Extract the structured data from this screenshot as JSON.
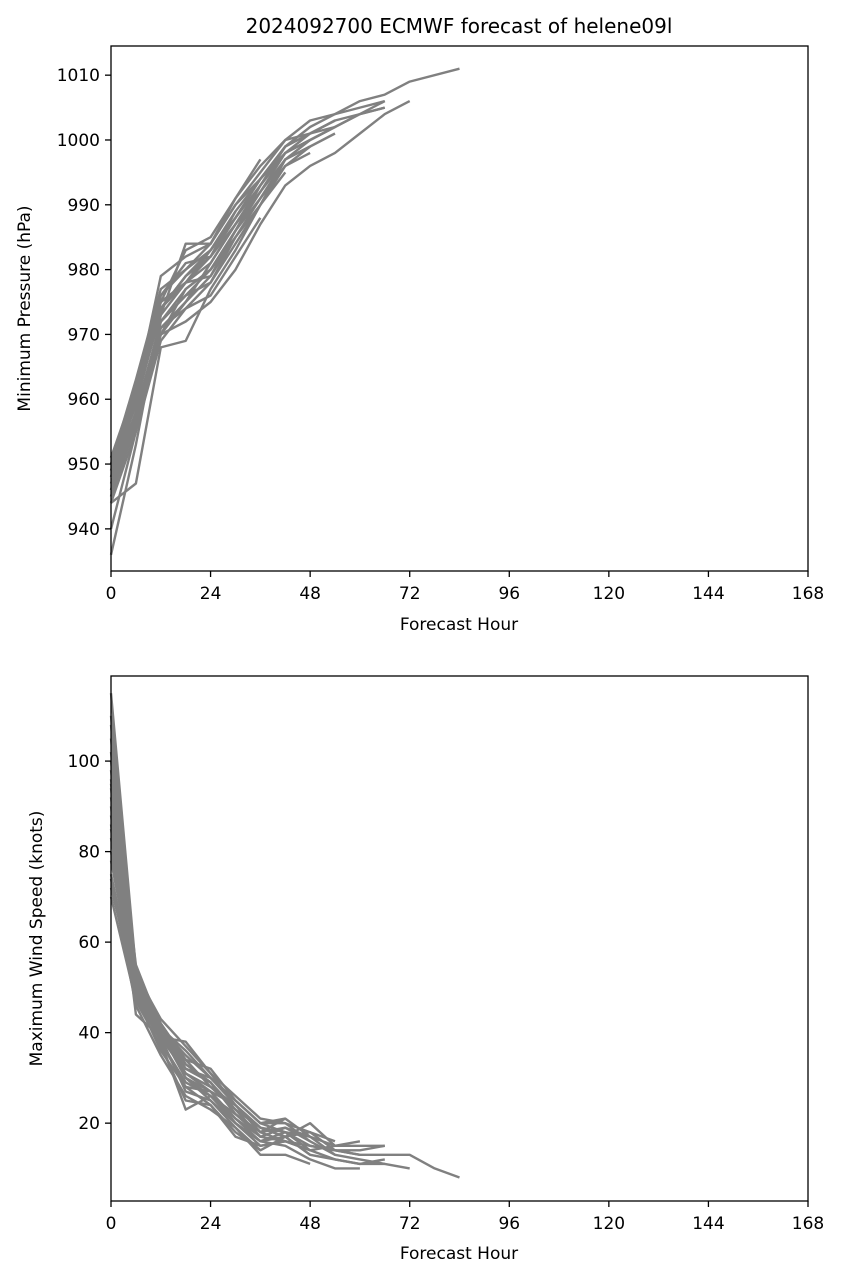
{
  "chart_data": [
    {
      "type": "line",
      "title": "2024092700 ECMWF forecast of helene09l",
      "xlabel": "Forecast Hour",
      "ylabel": "Minimum Pressure (hPa)",
      "xlim": [
        0,
        168
      ],
      "ylim": [
        933.5,
        1014.5
      ],
      "xticks": [
        0,
        24,
        48,
        72,
        96,
        120,
        144,
        168
      ],
      "yticks": [
        940,
        950,
        960,
        970,
        980,
        990,
        1000,
        1010
      ],
      "grid": false,
      "line_color": "#808080",
      "series": [
        {
          "x": [
            0,
            6,
            12,
            18,
            24,
            30,
            36,
            42,
            48,
            54,
            60,
            66,
            72,
            84
          ],
          "y": [
            948,
            962,
            975,
            978,
            982,
            989,
            994,
            999,
            1002,
            1004,
            1006,
            1007,
            1009,
            1011
          ]
        },
        {
          "x": [
            0,
            6,
            12,
            18,
            24,
            30,
            36,
            42,
            48,
            54,
            60,
            66,
            72
          ],
          "y": [
            945,
            958,
            970,
            972,
            975,
            980,
            987,
            993,
            996,
            998,
            1001,
            1004,
            1006
          ]
        },
        {
          "x": [
            0,
            6,
            12,
            18,
            24,
            30,
            36,
            42,
            48,
            54,
            60,
            66
          ],
          "y": [
            950,
            963,
            977,
            980,
            984,
            991,
            996,
            1000,
            1003,
            1004,
            1005,
            1006
          ]
        },
        {
          "x": [
            0,
            6,
            12,
            18,
            24,
            30,
            36,
            42,
            48,
            54,
            60,
            66
          ],
          "y": [
            946,
            960,
            974,
            978,
            983,
            988,
            994,
            998,
            1000,
            1002,
            1004,
            1006
          ]
        },
        {
          "x": [
            0,
            6,
            12,
            18,
            24,
            30,
            36,
            42,
            48,
            54,
            60,
            66
          ],
          "y": [
            944,
            947,
            968,
            969,
            977,
            983,
            990,
            997,
            1000,
            1002,
            1004,
            1005
          ]
        },
        {
          "x": [
            0,
            6,
            12,
            18,
            24,
            30,
            36,
            42,
            48,
            54,
            60,
            66
          ],
          "y": [
            951,
            961,
            979,
            982,
            984,
            990,
            995,
            1000,
            1001,
            1003,
            1004,
            1005
          ]
        },
        {
          "x": [
            0,
            6,
            12,
            18,
            24,
            30,
            36,
            42,
            48,
            54
          ],
          "y": [
            940,
            955,
            972,
            976,
            980,
            986,
            993,
            998,
            1001,
            1002
          ]
        },
        {
          "x": [
            0,
            6,
            12,
            18,
            24,
            30,
            36,
            42,
            48,
            54
          ],
          "y": [
            936,
            953,
            973,
            978,
            981,
            987,
            993,
            999,
            1001,
            1003
          ]
        },
        {
          "x": [
            0,
            6,
            12,
            18,
            24,
            30,
            36,
            42,
            48,
            54
          ],
          "y": [
            949,
            960,
            975,
            978,
            979,
            986,
            992,
            997,
            999,
            1001
          ]
        },
        {
          "x": [
            0,
            6,
            12,
            18,
            24,
            30,
            36,
            42,
            48
          ],
          "y": [
            947,
            957,
            971,
            974,
            978,
            985,
            990,
            996,
            999
          ]
        },
        {
          "x": [
            0,
            6,
            12,
            18,
            24,
            30,
            36,
            42,
            48
          ],
          "y": [
            950,
            961,
            976,
            980,
            983,
            988,
            993,
            998,
            1000
          ]
        },
        {
          "x": [
            0,
            6,
            12,
            18,
            24,
            30,
            36,
            42,
            48
          ],
          "y": [
            948,
            958,
            972,
            977,
            980,
            986,
            991,
            996,
            998
          ]
        },
        {
          "x": [
            0,
            6,
            12,
            18,
            24,
            30,
            36,
            42,
            48
          ],
          "y": [
            945,
            956,
            970,
            975,
            979,
            985,
            991,
            997,
            999
          ]
        },
        {
          "x": [
            0,
            6,
            12,
            18,
            24,
            30,
            36,
            42
          ],
          "y": [
            949,
            959,
            974,
            979,
            982,
            987,
            992,
            998
          ]
        },
        {
          "x": [
            0,
            6,
            12,
            18,
            24,
            30,
            36,
            42
          ],
          "y": [
            951,
            962,
            976,
            981,
            982,
            988,
            994,
            999
          ]
        },
        {
          "x": [
            0,
            6,
            12,
            18,
            24,
            30,
            36,
            42
          ],
          "y": [
            946,
            957,
            972,
            976,
            978,
            984,
            990,
            995
          ]
        },
        {
          "x": [
            0,
            6,
            12,
            18,
            24,
            30,
            36
          ],
          "y": [
            948,
            960,
            973,
            984,
            984,
            990,
            994
          ]
        },
        {
          "x": [
            0,
            6,
            12,
            18,
            24,
            30,
            36
          ],
          "y": [
            944,
            955,
            969,
            974,
            976,
            982,
            988
          ]
        },
        {
          "x": [
            0,
            6,
            12,
            18,
            24,
            30,
            36
          ],
          "y": [
            950,
            962,
            975,
            983,
            985,
            991,
            997
          ]
        },
        {
          "x": [
            0,
            6,
            12,
            18,
            24,
            30,
            36
          ],
          "y": [
            947,
            958,
            971,
            975,
            981,
            987,
            992
          ]
        },
        {
          "x": [
            0,
            6,
            12,
            18,
            24,
            30
          ],
          "y": [
            949,
            960,
            974,
            979,
            983,
            989
          ]
        },
        {
          "x": [
            0,
            6,
            12,
            18,
            24,
            30
          ],
          "y": [
            946,
            956,
            970,
            977,
            980,
            985
          ]
        }
      ]
    },
    {
      "type": "line",
      "title": "",
      "xlabel": "Forecast Hour",
      "ylabel": "Maximum Wind Speed (knots)",
      "xlim": [
        0,
        168
      ],
      "ylim": [
        2.8,
        118.8
      ],
      "xticks": [
        0,
        24,
        48,
        72,
        96,
        120,
        144,
        168
      ],
      "yticks": [
        20,
        40,
        60,
        80,
        100
      ],
      "grid": false,
      "line_color": "#808080",
      "series": [
        {
          "x": [
            0,
            6,
            12,
            18,
            24,
            30,
            36,
            42,
            48,
            54,
            60,
            66,
            72,
            78,
            84
          ],
          "y": [
            72,
            50,
            40,
            30,
            27,
            24,
            18,
            16,
            15,
            14,
            13,
            13,
            13,
            10,
            8
          ]
        },
        {
          "x": [
            0,
            6,
            12,
            18,
            24,
            30,
            36,
            42,
            48,
            54,
            60,
            66,
            72
          ],
          "y": [
            85,
            52,
            42,
            33,
            29,
            23,
            19,
            17,
            13,
            12,
            11,
            11,
            10
          ]
        },
        {
          "x": [
            0,
            6,
            12,
            18,
            24,
            30,
            36,
            42,
            48,
            54,
            60,
            66
          ],
          "y": [
            100,
            55,
            41,
            35,
            30,
            25,
            20,
            18,
            15,
            14,
            14,
            15
          ]
        },
        {
          "x": [
            0,
            6,
            12,
            18,
            24,
            30,
            36,
            42,
            48,
            54,
            60,
            66
          ],
          "y": [
            95,
            48,
            38,
            29,
            26,
            22,
            17,
            19,
            17,
            15,
            15,
            15
          ]
        },
        {
          "x": [
            0,
            6,
            12,
            18,
            24,
            30,
            36,
            42,
            48,
            54,
            60,
            66
          ],
          "y": [
            110,
            53,
            43,
            37,
            31,
            26,
            21,
            20,
            16,
            13,
            12,
            11
          ]
        },
        {
          "x": [
            0,
            6,
            12,
            18,
            24,
            30,
            36,
            42,
            48,
            54,
            60,
            66
          ],
          "y": [
            90,
            44,
            39,
            31,
            28,
            24,
            19,
            18,
            14,
            12,
            11,
            12
          ]
        },
        {
          "x": [
            0,
            6,
            12,
            18,
            24,
            30,
            36,
            42,
            48,
            54,
            60
          ],
          "y": [
            80,
            51,
            40,
            32,
            30,
            24,
            19,
            17,
            18,
            14,
            13
          ]
        },
        {
          "x": [
            0,
            6,
            12,
            18,
            24,
            30,
            36,
            42,
            48,
            54,
            60
          ],
          "y": [
            115,
            54,
            42,
            34,
            28,
            23,
            17,
            16,
            14,
            15,
            16
          ]
        },
        {
          "x": [
            0,
            6,
            12,
            18,
            24,
            30,
            36,
            42,
            48,
            54,
            60
          ],
          "y": [
            75,
            49,
            38,
            23,
            26,
            21,
            16,
            15,
            12,
            10,
            10
          ]
        },
        {
          "x": [
            0,
            6,
            12,
            18,
            24,
            30,
            36,
            42,
            48,
            54
          ],
          "y": [
            98,
            52,
            41,
            36,
            30,
            25,
            20,
            20,
            18,
            16
          ]
        },
        {
          "x": [
            0,
            6,
            12,
            18,
            24,
            30,
            36,
            42,
            48,
            54
          ],
          "y": [
            88,
            50,
            40,
            30,
            26,
            20,
            16,
            17,
            20,
            15
          ]
        },
        {
          "x": [
            0,
            6,
            12,
            18,
            24,
            30,
            36,
            42,
            48,
            54
          ],
          "y": [
            105,
            53,
            39,
            38,
            31,
            24,
            18,
            21,
            17,
            13
          ]
        },
        {
          "x": [
            0,
            6,
            12,
            18,
            24,
            30,
            36,
            42,
            48
          ],
          "y": [
            70,
            47,
            37,
            25,
            24,
            18,
            14,
            17,
            13
          ]
        },
        {
          "x": [
            0,
            6,
            12,
            18,
            24,
            30,
            36,
            42,
            48
          ],
          "y": [
            92,
            51,
            41,
            33,
            29,
            22,
            18,
            19,
            16
          ]
        },
        {
          "x": [
            0,
            6,
            12,
            18,
            24,
            30,
            36,
            42,
            48
          ],
          "y": [
            83,
            49,
            38,
            28,
            27,
            20,
            15,
            16,
            14
          ]
        },
        {
          "x": [
            0,
            6,
            12,
            18,
            24,
            30,
            36,
            42,
            48
          ],
          "y": [
            96,
            52,
            40,
            30,
            25,
            20,
            16,
            18,
            17
          ]
        },
        {
          "x": [
            0,
            6,
            12,
            18,
            24,
            30,
            36,
            42,
            48
          ],
          "y": [
            78,
            50,
            39,
            27,
            25,
            19,
            13,
            13,
            11
          ]
        },
        {
          "x": [
            0,
            6,
            12,
            18,
            24,
            30,
            36,
            42
          ],
          "y": [
            102,
            54,
            42,
            34,
            32,
            25,
            20,
            21
          ]
        },
        {
          "x": [
            0,
            6,
            12,
            18,
            24,
            30,
            36,
            42
          ],
          "y": [
            86,
            48,
            36,
            28,
            24,
            17,
            15,
            16
          ]
        },
        {
          "x": [
            0,
            6,
            12,
            18,
            24,
            30,
            36
          ],
          "y": [
            94,
            51,
            40,
            31,
            27,
            21,
            17
          ]
        },
        {
          "x": [
            0,
            6,
            12,
            18,
            24,
            30,
            36
          ],
          "y": [
            74,
            46,
            35,
            26,
            23,
            19,
            14
          ]
        },
        {
          "x": [
            0,
            6,
            12,
            18,
            24,
            30
          ],
          "y": [
            108,
            53,
            41,
            32,
            29,
            22
          ]
        }
      ]
    }
  ]
}
